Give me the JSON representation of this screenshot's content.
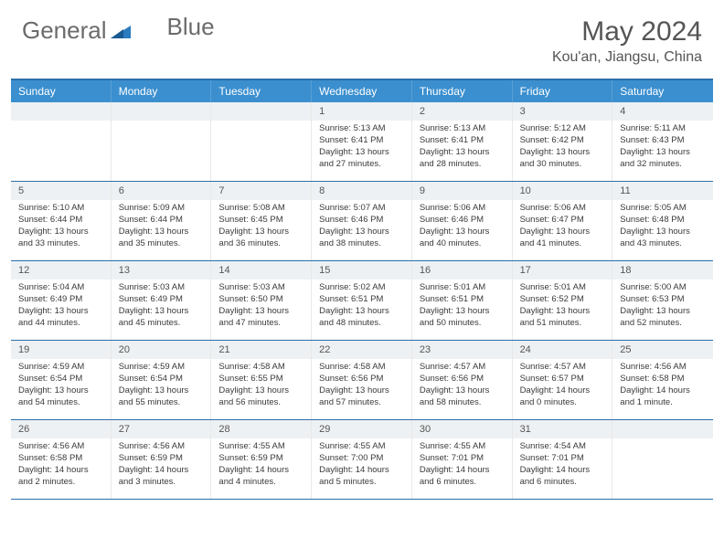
{
  "brand": {
    "name_part1": "General",
    "name_part2": "Blue",
    "text_color": "#6b6b6b",
    "accent_color": "#2b7bbf"
  },
  "header": {
    "month_title": "May 2024",
    "location": "Kou'an, Jiangsu, China",
    "title_color": "#555555",
    "title_fontsize": 30,
    "location_fontsize": 16
  },
  "colors": {
    "header_bg": "#3b8fcf",
    "header_text": "#ffffff",
    "top_border": "#2b6fa8",
    "row_border": "#2b6fa8",
    "daynum_bg": "#eef1f3",
    "daynum_text": "#555555",
    "body_text": "#3a3a3a",
    "page_bg": "#ffffff"
  },
  "calendar": {
    "day_headers": [
      "Sunday",
      "Monday",
      "Tuesday",
      "Wednesday",
      "Thursday",
      "Friday",
      "Saturday"
    ],
    "weeks": [
      [
        null,
        null,
        null,
        {
          "n": "1",
          "sunrise": "5:13 AM",
          "sunset": "6:41 PM",
          "daylight": "13 hours and 27 minutes."
        },
        {
          "n": "2",
          "sunrise": "5:13 AM",
          "sunset": "6:41 PM",
          "daylight": "13 hours and 28 minutes."
        },
        {
          "n": "3",
          "sunrise": "5:12 AM",
          "sunset": "6:42 PM",
          "daylight": "13 hours and 30 minutes."
        },
        {
          "n": "4",
          "sunrise": "5:11 AM",
          "sunset": "6:43 PM",
          "daylight": "13 hours and 32 minutes."
        }
      ],
      [
        {
          "n": "5",
          "sunrise": "5:10 AM",
          "sunset": "6:44 PM",
          "daylight": "13 hours and 33 minutes."
        },
        {
          "n": "6",
          "sunrise": "5:09 AM",
          "sunset": "6:44 PM",
          "daylight": "13 hours and 35 minutes."
        },
        {
          "n": "7",
          "sunrise": "5:08 AM",
          "sunset": "6:45 PM",
          "daylight": "13 hours and 36 minutes."
        },
        {
          "n": "8",
          "sunrise": "5:07 AM",
          "sunset": "6:46 PM",
          "daylight": "13 hours and 38 minutes."
        },
        {
          "n": "9",
          "sunrise": "5:06 AM",
          "sunset": "6:46 PM",
          "daylight": "13 hours and 40 minutes."
        },
        {
          "n": "10",
          "sunrise": "5:06 AM",
          "sunset": "6:47 PM",
          "daylight": "13 hours and 41 minutes."
        },
        {
          "n": "11",
          "sunrise": "5:05 AM",
          "sunset": "6:48 PM",
          "daylight": "13 hours and 43 minutes."
        }
      ],
      [
        {
          "n": "12",
          "sunrise": "5:04 AM",
          "sunset": "6:49 PM",
          "daylight": "13 hours and 44 minutes."
        },
        {
          "n": "13",
          "sunrise": "5:03 AM",
          "sunset": "6:49 PM",
          "daylight": "13 hours and 45 minutes."
        },
        {
          "n": "14",
          "sunrise": "5:03 AM",
          "sunset": "6:50 PM",
          "daylight": "13 hours and 47 minutes."
        },
        {
          "n": "15",
          "sunrise": "5:02 AM",
          "sunset": "6:51 PM",
          "daylight": "13 hours and 48 minutes."
        },
        {
          "n": "16",
          "sunrise": "5:01 AM",
          "sunset": "6:51 PM",
          "daylight": "13 hours and 50 minutes."
        },
        {
          "n": "17",
          "sunrise": "5:01 AM",
          "sunset": "6:52 PM",
          "daylight": "13 hours and 51 minutes."
        },
        {
          "n": "18",
          "sunrise": "5:00 AM",
          "sunset": "6:53 PM",
          "daylight": "13 hours and 52 minutes."
        }
      ],
      [
        {
          "n": "19",
          "sunrise": "4:59 AM",
          "sunset": "6:54 PM",
          "daylight": "13 hours and 54 minutes."
        },
        {
          "n": "20",
          "sunrise": "4:59 AM",
          "sunset": "6:54 PM",
          "daylight": "13 hours and 55 minutes."
        },
        {
          "n": "21",
          "sunrise": "4:58 AM",
          "sunset": "6:55 PM",
          "daylight": "13 hours and 56 minutes."
        },
        {
          "n": "22",
          "sunrise": "4:58 AM",
          "sunset": "6:56 PM",
          "daylight": "13 hours and 57 minutes."
        },
        {
          "n": "23",
          "sunrise": "4:57 AM",
          "sunset": "6:56 PM",
          "daylight": "13 hours and 58 minutes."
        },
        {
          "n": "24",
          "sunrise": "4:57 AM",
          "sunset": "6:57 PM",
          "daylight": "14 hours and 0 minutes."
        },
        {
          "n": "25",
          "sunrise": "4:56 AM",
          "sunset": "6:58 PM",
          "daylight": "14 hours and 1 minute."
        }
      ],
      [
        {
          "n": "26",
          "sunrise": "4:56 AM",
          "sunset": "6:58 PM",
          "daylight": "14 hours and 2 minutes."
        },
        {
          "n": "27",
          "sunrise": "4:56 AM",
          "sunset": "6:59 PM",
          "daylight": "14 hours and 3 minutes."
        },
        {
          "n": "28",
          "sunrise": "4:55 AM",
          "sunset": "6:59 PM",
          "daylight": "14 hours and 4 minutes."
        },
        {
          "n": "29",
          "sunrise": "4:55 AM",
          "sunset": "7:00 PM",
          "daylight": "14 hours and 5 minutes."
        },
        {
          "n": "30",
          "sunrise": "4:55 AM",
          "sunset": "7:01 PM",
          "daylight": "14 hours and 6 minutes."
        },
        {
          "n": "31",
          "sunrise": "4:54 AM",
          "sunset": "7:01 PM",
          "daylight": "14 hours and 6 minutes."
        },
        null
      ]
    ],
    "labels": {
      "sunrise": "Sunrise:",
      "sunset": "Sunset:",
      "daylight": "Daylight:"
    }
  }
}
